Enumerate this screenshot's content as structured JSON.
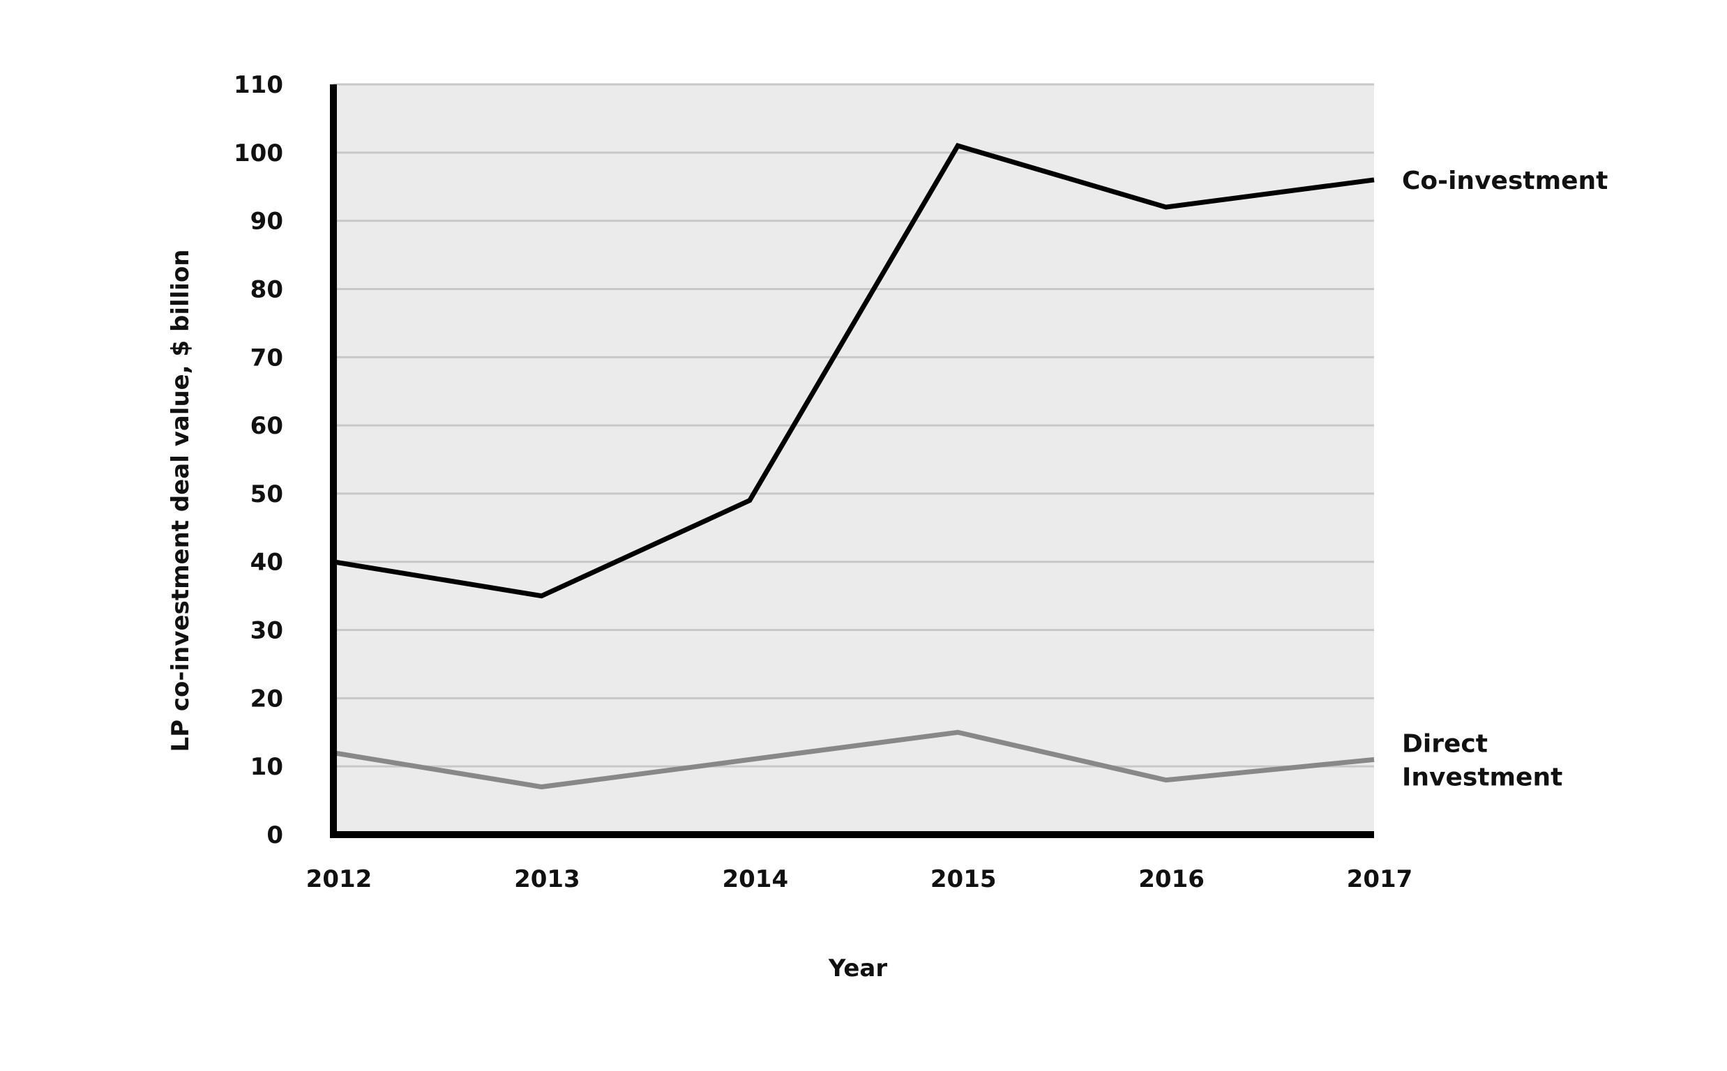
{
  "chart_data": {
    "type": "line",
    "title": "",
    "xlabel": "Year",
    "ylabel": "LP co-investment deal value, $ billion",
    "categories": [
      "2012",
      "2013",
      "2014",
      "2015",
      "2016",
      "2017"
    ],
    "yticks": [
      "0",
      "10",
      "20",
      "30",
      "40",
      "50",
      "60",
      "70",
      "80",
      "90",
      "100",
      "110"
    ],
    "ylim": [
      0,
      110
    ],
    "grid": true,
    "legend": "none (series labeled at right end of lines)",
    "series": [
      {
        "name": "Co-investment",
        "label_lines": [
          "Co-investment"
        ],
        "values": [
          40,
          35,
          49,
          101,
          92,
          96
        ],
        "color": "#000000"
      },
      {
        "name": "Direct Investment",
        "label_lines": [
          "Direct",
          "Investment"
        ],
        "values": [
          12,
          7,
          11,
          15,
          8,
          11
        ],
        "color": "#888888"
      }
    ],
    "colors": {
      "plot_background": "#ebebeb",
      "grid": "#c8c8c8",
      "axis": "#000000"
    }
  }
}
